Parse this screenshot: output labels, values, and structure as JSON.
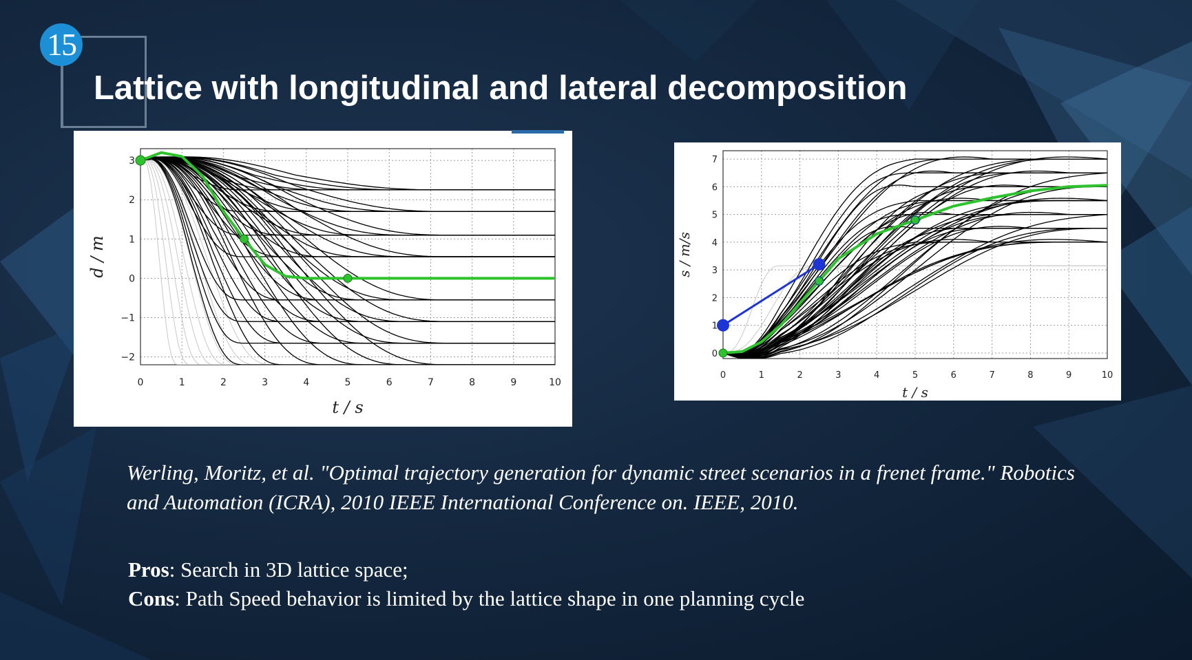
{
  "slide": {
    "number": "15",
    "title": "Lattice with longitudinal and lateral decomposition"
  },
  "citation": "Werling, Moritz, et al. \"Optimal trajectory generation for dynamic street scenarios in a frenet frame.\" Robotics and Automation (ICRA), 2010 IEEE International Conference on. IEEE, 2010.",
  "pros": {
    "label": "Pros",
    "text": ": Search in 3D lattice space;"
  },
  "cons": {
    "label": "Cons",
    "text": ": Path Speed behavior is limited by the lattice shape in one planning cycle"
  },
  "colors": {
    "selected_trajectory": "#2ec22e",
    "reference_line": "#1e35d6",
    "candidate": "#000000",
    "discarded": "#c8c8c8",
    "slide_number_bg": "#1c8fd6"
  },
  "chart_data": [
    {
      "type": "line",
      "title": "",
      "xlabel": "t / s",
      "ylabel": "d / m",
      "xlim": [
        0,
        10
      ],
      "ylim": [
        -2.2,
        3.3
      ],
      "xticks": [
        "0",
        "1",
        "2",
        "3",
        "4",
        "5",
        "6",
        "7",
        "8",
        "9",
        "10"
      ],
      "yticks": [
        "−2",
        "−1",
        "0",
        "1",
        "2",
        "3"
      ],
      "grid": true,
      "start_point": {
        "t": 0,
        "d": 3
      },
      "marked_points": [
        {
          "t": 2.5,
          "d": 1
        },
        {
          "t": 5,
          "d": 0
        }
      ],
      "candidate_end_offsets_d": [
        2.25,
        1.7,
        1.1,
        0.55,
        -0.55,
        -1.1,
        -1.65,
        -2.2
      ],
      "discarded_end_offsets_d": [
        -2.2,
        -2.2,
        -2.2,
        -2.2,
        -2.2,
        -2.2
      ],
      "series": [
        {
          "name": "",
          "x": [
            0,
            0.5,
            1,
            1.5,
            2,
            2.5,
            3,
            3.5,
            4,
            5,
            6,
            7,
            8,
            9,
            10
          ],
          "y": [
            3,
            3.2,
            3.1,
            2.6,
            1.7,
            1.0,
            0.35,
            0.05,
            0,
            0,
            0,
            0,
            0,
            0,
            0
          ]
        }
      ]
    },
    {
      "type": "line",
      "title": "",
      "xlabel": "t / s",
      "ylabel": "s / m/s",
      "xlim": [
        0,
        10
      ],
      "ylim": [
        -0.2,
        7.3
      ],
      "xticks": [
        "0",
        "1",
        "2",
        "3",
        "4",
        "5",
        "6",
        "7",
        "8",
        "9",
        "10"
      ],
      "yticks": [
        "0",
        "1",
        "2",
        "3",
        "4",
        "5",
        "6",
        "7"
      ],
      "grid": true,
      "start_point": {
        "t": 0,
        "s": 0
      },
      "reference_points": [
        {
          "t": 0,
          "s": 1
        },
        {
          "t": 2.5,
          "s": 3.2
        }
      ],
      "marked_points": [
        {
          "t": 2.5,
          "s": 2.6
        },
        {
          "t": 5,
          "s": 4.8
        }
      ],
      "candidate_end_values_s": [
        7,
        6.5,
        6.0,
        5.5,
        5.0,
        4.5,
        4.0
      ],
      "series": [
        {
          "name": "",
          "x": [
            0,
            0.5,
            1,
            1.5,
            2,
            2.5,
            3,
            4,
            5,
            6,
            7,
            8,
            9,
            10
          ],
          "y": [
            0,
            0.05,
            0.4,
            1.0,
            1.8,
            2.6,
            3.4,
            4.3,
            4.8,
            5.3,
            5.6,
            5.85,
            6.0,
            6.05
          ]
        }
      ]
    }
  ]
}
